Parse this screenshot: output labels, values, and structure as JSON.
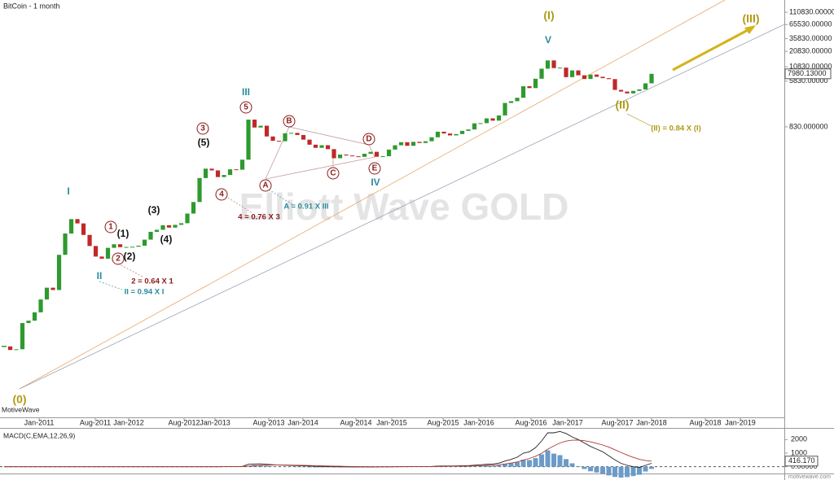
{
  "chart_data": [
    {
      "type": "candlestick",
      "title": "BitCoin - 1 month",
      "log_scale": true,
      "up_color": "#2e9a2e",
      "down_color": "#c0282a",
      "close": [
        0.07,
        0.06,
        0.062,
        0.19,
        0.21,
        0.3,
        0.52,
        0.86,
        0.78,
        3.5,
        8.7,
        16.1,
        13.4,
        8.2,
        5.1,
        3.25,
        2.97,
        4.72,
        5.5,
        4.86,
        4.9,
        4.95,
        5.17,
        6.7,
        9.35,
        10.2,
        12.4,
        11.2,
        12.6,
        13.5,
        20.4,
        33.4,
        93,
        139,
        129,
        97,
        106,
        135,
        133,
        204,
        1130,
        805,
        870,
        550,
        457,
        448,
        630,
        640,
        585,
        480,
        387,
        338,
        378,
        320,
        217,
        254,
        244,
        236,
        230,
        263,
        285,
        231,
        236,
        314,
        377,
        430,
        369,
        437,
        416,
        448,
        531,
        673,
        624,
        575,
        609,
        698,
        742,
        963,
        970,
        1190,
        1080,
        1350,
        2300,
        2480,
        2870,
        4700,
        4340,
        6470,
        9950,
        14150,
        10200,
        10400,
        6930,
        9240,
        7500,
        6390,
        7730,
        7030,
        6630,
        6370,
        4020,
        3740,
        3460,
        3850,
        4100,
        5320,
        7980.13
      ],
      "xlim": [
        -0.67,
        127.73
      ],
      "xticks": [
        {
          "value": 5.73,
          "label": "Jan-2011"
        },
        {
          "value": 14.93,
          "label": "Aug-2011"
        },
        {
          "value": 20.4,
          "label": "Jan-2012"
        },
        {
          "value": 29.47,
          "label": "Aug-2012"
        },
        {
          "value": 34.53,
          "label": "Jan-2013"
        },
        {
          "value": 43.33,
          "label": "Aug-2013"
        },
        {
          "value": 48.93,
          "label": "Jan-2014"
        },
        {
          "value": 57.6,
          "label": "Aug-2014"
        },
        {
          "value": 63.47,
          "label": "Jan-2015"
        },
        {
          "value": 71.87,
          "label": "Aug-2015"
        },
        {
          "value": 77.73,
          "label": "Jan-2016"
        },
        {
          "value": 86.27,
          "label": "Aug-2016"
        },
        {
          "value": 92.27,
          "label": "Jan-2017"
        },
        {
          "value": 100.4,
          "label": "Aug-2017"
        },
        {
          "value": 106,
          "label": "Jan-2018"
        },
        {
          "value": 114.8,
          "label": "Aug-2018"
        },
        {
          "value": 120.53,
          "label": "Jan-2019"
        }
      ],
      "ylim": [
        0.0035,
        187000
      ],
      "yticks": [
        {
          "value": 110830,
          "label": "110830.00000"
        },
        {
          "value": 65530,
          "label": "65530.00000"
        },
        {
          "value": 35830,
          "label": "35830.00000"
        },
        {
          "value": 20830,
          "label": "20830.00000"
        },
        {
          "value": 10830,
          "label": "10830.00000"
        },
        {
          "value": 5830,
          "label": "5830.00000"
        },
        {
          "value": 830,
          "label": "830.000000"
        }
      ],
      "price_label": {
        "value": 7980.13,
        "label": "7980.13000"
      },
      "annotations": [
        "(0)",
        "I",
        "II",
        "III",
        "IV",
        "V",
        "(1)",
        "(2)",
        "(3)",
        "(4)",
        "(5)",
        "1",
        "2",
        "3",
        "4",
        "5",
        "A",
        "B",
        "C",
        "D",
        "E",
        "(I)",
        "(II)",
        "(III)",
        "2 = 0.64 X 1",
        "II = 0.94 X I",
        "4 = 0.76 X 3",
        "A = 0.91 X III",
        "(II) = 0.84 X (I)"
      ],
      "source_label": "MotiveWave",
      "watermark": "Elliott Wave GOLD",
      "footer": "motivewave.com"
    },
    {
      "type": "macd",
      "title": "MACD(C,EMA,12,26,9)",
      "series": [
        {
          "color": "#222222",
          "values": [
            0,
            0,
            0,
            0,
            0,
            0,
            0,
            0,
            0,
            0,
            0,
            0,
            0,
            0,
            0,
            0,
            0,
            0,
            0,
            0,
            0,
            0,
            0,
            0,
            0,
            0,
            0,
            0,
            0,
            0,
            0,
            0,
            0,
            0,
            0,
            0,
            5,
            10,
            15,
            25,
            180,
            200,
            210,
            180,
            150,
            120,
            110,
            100,
            85,
            65,
            45,
            30,
            20,
            10,
            0,
            -5,
            -10,
            -15,
            -15,
            -15,
            -15,
            -15,
            -10,
            -5,
            0,
            5,
            5,
            10,
            10,
            15,
            20,
            40,
            50,
            55,
            60,
            70,
            80,
            110,
            140,
            180,
            200,
            260,
            420,
            540,
            700,
            1000,
            1100,
            1400,
            1900,
            2500,
            2500,
            2600,
            2450,
            2200,
            2000,
            1750,
            1500,
            1300,
            1100,
            800,
            500,
            250,
            100,
            0,
            -50,
            100,
            250
          ]
        },
        {
          "color": "#b03a2e",
          "values": [
            0,
            0,
            0,
            0,
            0,
            0,
            0,
            0,
            0,
            0,
            0,
            0,
            0,
            0,
            0,
            0,
            0,
            0,
            0,
            0,
            0,
            0,
            0,
            0,
            0,
            0,
            0,
            0,
            0,
            0,
            0,
            0,
            0,
            0,
            0,
            0,
            2,
            4,
            7,
            10,
            40,
            70,
            100,
            115,
            125,
            125,
            122,
            118,
            112,
            102,
            90,
            78,
            66,
            55,
            44,
            34,
            25,
            17,
            10,
            5,
            1,
            -2,
            -4,
            -4,
            -3,
            -1,
            0,
            2,
            4,
            6,
            9,
            15,
            22,
            29,
            35,
            42,
            50,
            62,
            78,
            98,
            118,
            146,
            201,
            269,
            355,
            484,
            607,
            766,
            992,
            1294,
            1535,
            1748,
            1889,
            1951,
            1961,
            1919,
            1835,
            1728,
            1602,
            1442,
            1254,
            1053,
            863,
            690,
            542,
            454,
            413
          ]
        }
      ],
      "histogram": {
        "color": "#6b9bc8",
        "values": [
          0,
          0,
          0,
          0,
          0,
          0,
          0,
          0,
          0,
          0,
          0,
          0,
          0,
          0,
          0,
          0,
          0,
          0,
          0,
          0,
          0,
          0,
          0,
          0,
          0,
          0,
          0,
          0,
          0,
          0,
          0,
          0,
          0,
          0,
          0,
          0,
          3,
          6,
          8,
          15,
          0,
          130,
          110,
          65,
          25,
          -5,
          -12,
          -18,
          -27,
          -37,
          -45,
          -48,
          -46,
          -45,
          -44,
          -39,
          -35,
          -32,
          -25,
          -20,
          -16,
          -13,
          -6,
          -1,
          3,
          6,
          5,
          8,
          6,
          9,
          11,
          25,
          28,
          26,
          25,
          28,
          30,
          48,
          62,
          82,
          82,
          114,
          219,
          271,
          345,
          516,
          493,
          634,
          908,
          1206,
          965,
          852,
          561,
          249,
          39,
          -169,
          -335,
          -428,
          -502,
          -642,
          -754,
          -803,
          -763,
          -690,
          -592,
          -354,
          -163
        ]
      },
      "ylim": [
        -500,
        2800
      ],
      "yticks": [
        2000,
        1000,
        {
          "value": 0,
          "label": "0.00000"
        }
      ],
      "value_label": {
        "value": 416.17,
        "label": "416.170"
      }
    }
  ]
}
